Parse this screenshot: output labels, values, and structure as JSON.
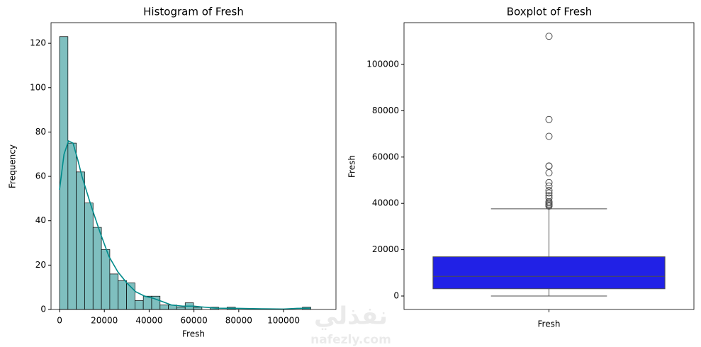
{
  "chart_data": [
    {
      "type": "histogram",
      "title": "Histogram of Fresh",
      "xlabel": "Fresh",
      "ylabel": "Frequency",
      "bins": [
        3,
        3741,
        7479,
        11218,
        14956,
        18694,
        22433,
        26171,
        29909,
        33648,
        37386,
        41124,
        44863,
        48601,
        52339,
        56078,
        59816,
        63554,
        67292,
        71031,
        74769,
        78507,
        82246,
        85984,
        89722,
        93461,
        97199,
        100937,
        104676,
        108414,
        112152
      ],
      "counts": [
        123,
        75,
        62,
        48,
        37,
        27,
        16,
        13,
        12,
        4,
        6,
        6,
        2,
        2,
        1,
        3,
        1,
        0,
        1,
        0,
        1,
        0,
        0,
        0,
        0,
        0,
        0,
        0,
        0,
        1
      ],
      "color": "#7fbfbf",
      "edgecolor": "#000000",
      "kde": {
        "x": [
          0,
          2000,
          4000,
          6000,
          8000,
          10000,
          14000,
          18000,
          22000,
          26000,
          30000,
          34000,
          38000,
          42000,
          46000,
          50000,
          55000,
          60000,
          65000,
          70000,
          80000,
          90000,
          100000,
          106000,
          112000
        ],
        "values": [
          54,
          70,
          76,
          75,
          68,
          60,
          47,
          35,
          24,
          17,
          12,
          8,
          6,
          5,
          3.5,
          2,
          1.5,
          1.5,
          1,
          0.6,
          0.5,
          0.3,
          0.2,
          0.5,
          0.6
        ],
        "color": "#008b8b"
      },
      "xlim": [
        -3800,
        123400
      ],
      "ylim": [
        0,
        129.3
      ],
      "xticks": [
        0,
        20000,
        40000,
        60000,
        80000,
        100000
      ],
      "yticks": [
        0,
        20,
        40,
        60,
        80,
        100,
        120
      ]
    },
    {
      "type": "box",
      "title": "Boxplot of Fresh",
      "ylabel": "Fresh",
      "categories": [
        "Fresh"
      ],
      "whislo": 3,
      "q1": 3128,
      "med": 8504,
      "q3": 16934,
      "whishi": 37642,
      "fliers": [
        112151,
        76237,
        68951,
        56159,
        56083,
        53205,
        49000,
        47500,
        45600,
        44500,
        43300,
        42300,
        40700,
        40250,
        39700,
        39200,
        38800
      ],
      "color": "#2121e6",
      "linecolor": "#4d4d4d",
      "ylim": [
        -5810,
        118040
      ],
      "yticks": [
        0,
        20000,
        40000,
        60000,
        80000,
        100000
      ]
    }
  ],
  "watermark": {
    "arabic": "نفذلي",
    "site": "nafezly.com"
  }
}
